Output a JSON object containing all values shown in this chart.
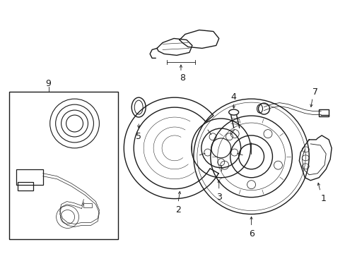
{
  "background_color": "#ffffff",
  "line_color": "#1a1a1a",
  "lw": 1.0,
  "tlw": 0.6,
  "fig_width": 4.89,
  "fig_height": 3.6,
  "dpi": 100
}
